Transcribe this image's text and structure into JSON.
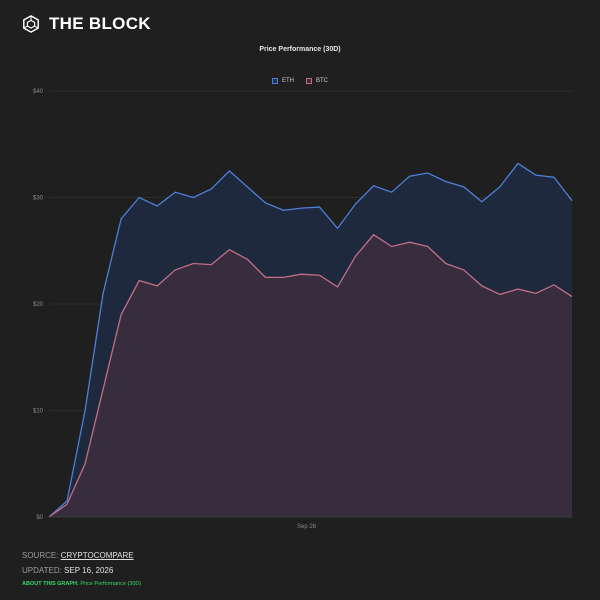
{
  "brand": {
    "name": "THE BLOCK"
  },
  "chart_data": {
    "type": "area",
    "title": "Price Performance (30D)",
    "xlabel": "",
    "ylabel": "",
    "x_tick_labels": [
      "Sep 26"
    ],
    "y_ticks": [
      "$0",
      "$10",
      "$20",
      "$30",
      "$40"
    ],
    "ylim": [
      0,
      40
    ],
    "grid": true,
    "legend_position": "top-center",
    "series": [
      {
        "name": "ETH",
        "color": "#4d7fd9",
        "values": [
          0,
          1.5,
          10,
          21,
          28,
          30,
          29.2,
          30.5,
          30,
          30.8,
          32.5,
          31,
          29.5,
          28.8,
          29,
          29.1,
          27.1,
          29.4,
          31.1,
          30.5,
          32,
          32.3,
          31.5,
          31,
          29.6,
          31,
          33.2,
          32.1,
          31.9,
          29.7
        ]
      },
      {
        "name": "BTC",
        "color": "#c06f84",
        "values": [
          0,
          1.2,
          5,
          12,
          19,
          22.2,
          21.7,
          23.2,
          23.8,
          23.7,
          25.1,
          24.2,
          22.5,
          22.5,
          22.8,
          22.7,
          21.6,
          24.5,
          26.5,
          25.4,
          25.8,
          25.4,
          23.8,
          23.2,
          21.7,
          20.9,
          21.4,
          21,
          21.8,
          20.7
        ]
      }
    ]
  },
  "footer": {
    "source_label": "SOURCE:",
    "source_value": "CRYPTOCOMPARE",
    "updated_label": "UPDATED:",
    "updated_value": "SEP 16, 2026",
    "about_label": "ABOUT THIS GRAPH:",
    "about_value": "Price Performance (30D)"
  }
}
